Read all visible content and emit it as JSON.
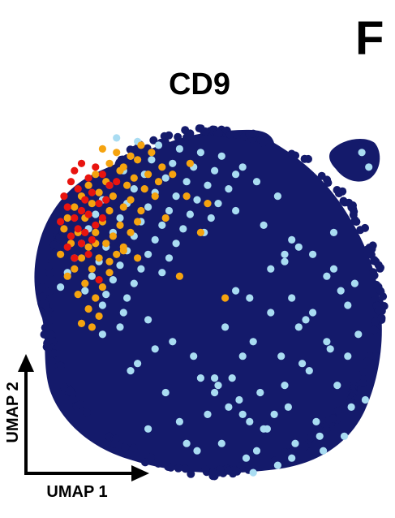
{
  "panel_label": "F",
  "colors": {
    "background": "#ffffff",
    "axis": "#000000",
    "expr_none": "#141a6b",
    "expr_low": "#a9dcf2",
    "expr_mid": "#f5a30f",
    "expr_high": "#e8140f"
  },
  "chart_data": {
    "type": "scatter",
    "title": "CD9",
    "xlabel": "UMAP 1",
    "ylabel": "UMAP 2",
    "axis_ticks": "none",
    "grid": false,
    "legend": "none",
    "color_encoding": "CD9 expression level",
    "expression_levels": [
      "none",
      "low",
      "mid",
      "high"
    ],
    "note_values": "UMAP coordinates are unitless; values below are approximate positions read on a 0-100 scale of the embedding",
    "series": [
      {
        "level": "high",
        "color": "#e8140f",
        "x": [
          14,
          12,
          18,
          11,
          16,
          20,
          13,
          9,
          17,
          22,
          15,
          10,
          19,
          14,
          24,
          12,
          8,
          16,
          21,
          13,
          18,
          11,
          15,
          20,
          10,
          14,
          17,
          12,
          16,
          19
        ],
        "y": [
          89,
          87,
          88,
          84,
          85,
          86,
          82,
          80,
          81,
          83,
          79,
          77,
          78,
          76,
          84,
          74,
          73,
          75,
          79,
          71,
          72,
          69,
          70,
          74,
          66,
          67,
          68,
          63,
          64,
          57
        ]
      },
      {
        "level": "mid",
        "color": "#f5a30f",
        "x": [
          20,
          24,
          28,
          31,
          22,
          26,
          30,
          34,
          18,
          25,
          29,
          33,
          37,
          16,
          21,
          27,
          32,
          36,
          14,
          19,
          23,
          28,
          35,
          12,
          17,
          22,
          26,
          31,
          10,
          15,
          20,
          25,
          30,
          9,
          13,
          18,
          23,
          28,
          11,
          16,
          21,
          26,
          8,
          14,
          19,
          24,
          12,
          17,
          22,
          15,
          20,
          10,
          18,
          13,
          16,
          19,
          14,
          17,
          40,
          45,
          44,
          50,
          38,
          48,
          22,
          26,
          18,
          30,
          42,
          55
        ],
        "y": [
          93,
          92,
          91,
          94,
          89,
          88,
          90,
          92,
          86,
          87,
          85,
          86,
          88,
          83,
          84,
          83,
          82,
          84,
          80,
          81,
          80,
          79,
          80,
          77,
          78,
          76,
          77,
          76,
          74,
          74,
          73,
          72,
          73,
          71,
          70,
          70,
          69,
          70,
          67,
          66,
          67,
          66,
          64,
          63,
          63,
          64,
          60,
          60,
          59,
          56,
          55,
          58,
          52,
          53,
          49,
          47,
          45,
          44,
          86,
          89,
          80,
          78,
          74,
          70,
          62,
          65,
          67,
          63,
          58,
          52
        ]
      },
      {
        "level": "low",
        "color": "#a9dcf2",
        "x": [
          24,
          30,
          36,
          42,
          48,
          54,
          28,
          34,
          40,
          46,
          52,
          58,
          26,
          32,
          38,
          44,
          50,
          56,
          22,
          29,
          35,
          41,
          47,
          53,
          20,
          27,
          33,
          39,
          45,
          51,
          18,
          25,
          31,
          37,
          43,
          49,
          16,
          23,
          29,
          35,
          41,
          14,
          21,
          27,
          33,
          39,
          12,
          19,
          25,
          31,
          37,
          10,
          17,
          23,
          29,
          8,
          15,
          21,
          27,
          20,
          26,
          33,
          60,
          64,
          70,
          58,
          66,
          74,
          80,
          86,
          92,
          62,
          68,
          76,
          84,
          90,
          55,
          63,
          71,
          79,
          87,
          95,
          57,
          65,
          73,
          81,
          89,
          60,
          67,
          75,
          83,
          91,
          52,
          59,
          69,
          77,
          85,
          93,
          54,
          61,
          72,
          78,
          88,
          46,
          53,
          62,
          70,
          82,
          90,
          40,
          48,
          56,
          66,
          74,
          80,
          30,
          38,
          44,
          58,
          68,
          76,
          84,
          25,
          35,
          50,
          64,
          72,
          86,
          20,
          28,
          42,
          52,
          60,
          74,
          33,
          47,
          63,
          72,
          96,
          94
        ],
        "y": [
          96,
          95,
          94,
          93,
          92,
          91,
          91,
          90,
          89,
          88,
          87,
          86,
          87,
          86,
          85,
          84,
          83,
          82,
          83,
          82,
          81,
          80,
          79,
          78,
          79,
          78,
          77,
          76,
          75,
          74,
          75,
          74,
          73,
          72,
          71,
          70,
          71,
          70,
          69,
          68,
          67,
          67,
          66,
          65,
          64,
          63,
          63,
          62,
          61,
          60,
          59,
          59,
          58,
          57,
          56,
          55,
          54,
          53,
          52,
          50,
          48,
          46,
          88,
          84,
          80,
          76,
          72,
          68,
          64,
          60,
          56,
          52,
          48,
          44,
          40,
          36,
          44,
          40,
          36,
          32,
          28,
          24,
          30,
          26,
          22,
          18,
          14,
          20,
          16,
          12,
          10,
          22,
          30,
          24,
          20,
          34,
          38,
          42,
          12,
          8,
          28,
          46,
          54,
          36,
          28,
          18,
          6,
          14,
          50,
          40,
          30,
          22,
          16,
          8,
          48,
          34,
          26,
          12,
          54,
          60,
          66,
          58,
          44,
          38,
          20,
          10,
          62,
          70,
          42,
          32,
          18,
          26,
          36,
          52,
          16,
          10,
          4,
          64,
          88,
          92
        ]
      },
      {
        "level": "none",
        "color": "#141a6b",
        "region": "fills the whole embedding outline as a dense cloud behind the colored points"
      }
    ]
  }
}
